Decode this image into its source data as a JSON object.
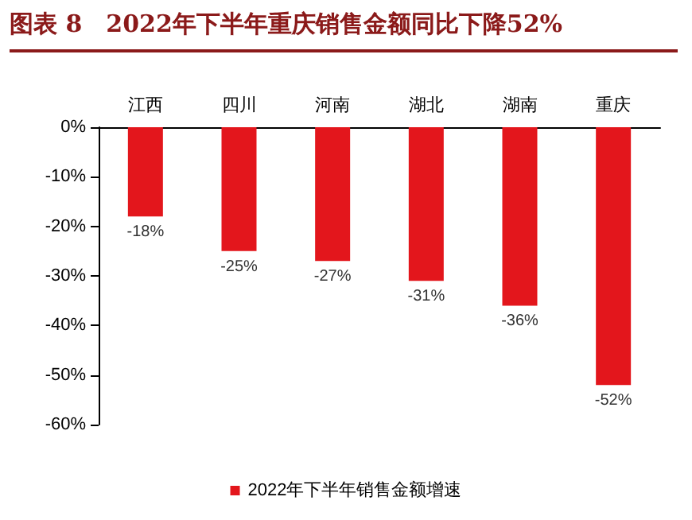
{
  "chart_data": {
    "type": "bar",
    "title": "图表 8　2022年下半年重庆销售金额同比下降52%",
    "categories": [
      "江西",
      "四川",
      "河南",
      "湖北",
      "湖南",
      "重庆"
    ],
    "series": [
      {
        "name": "2022年下半年销售金额增速",
        "color": "#e3161c",
        "values": [
          -18,
          -25,
          -27,
          -31,
          -36,
          -52
        ],
        "value_labels": [
          "-18%",
          "-25%",
          "-27%",
          "-31%",
          "-36%",
          "-52%"
        ]
      }
    ],
    "ylim": [
      -60,
      0
    ],
    "yticks": [
      {
        "value": -60,
        "label": "-60%"
      },
      {
        "value": -50,
        "label": "-50%"
      },
      {
        "value": -40,
        "label": "-40%"
      },
      {
        "value": -30,
        "label": "-30%"
      },
      {
        "value": -20,
        "label": "-20%"
      },
      {
        "value": -10,
        "label": "-10%"
      },
      {
        "value": 0,
        "label": "0%"
      }
    ],
    "grid": false,
    "legend": "bottom"
  }
}
